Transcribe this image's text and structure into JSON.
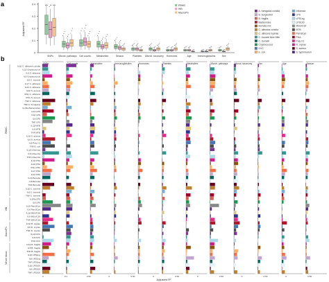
{
  "panels": {
    "a": "a",
    "b": "b"
  },
  "panel_a": {
    "ylabel": "Adjusted R²",
    "yticks": [
      "0.4",
      "0.3",
      "0.2",
      "0.1",
      "0"
    ],
    "categories": [
      "SNPs",
      "Microb. pathways",
      "Cell counts",
      "Metabolites",
      "Season",
      "Platelets",
      "Microb. taxonomy",
      "Hormones",
      "Age",
      "Immunoglobulins",
      "Sex"
    ],
    "legend": [
      {
        "label": "PBMC",
        "color": "#8fc99a"
      },
      {
        "label": "WB",
        "color": "#e9a3c9"
      },
      {
        "label": "MacroPS",
        "color": "#f6c28b"
      }
    ]
  },
  "color_legend": [
    {
      "label": "A. fumigatus conidia",
      "color": "#7b3294"
    },
    {
      "label": "B. burgdorferi",
      "color": "#c2a5cf"
    },
    {
      "label": "B. fragilis",
      "color": "#d6604d"
    },
    {
      "label": "Bacteroides",
      "color": "#b2182b"
    },
    {
      "label": "Borrelia mix",
      "color": "#8c510a"
    },
    {
      "label": "C. albicans conidia",
      "color": "#bf812d"
    },
    {
      "label": "C. albicans hyphae",
      "color": "#dfc27d"
    },
    {
      "label": "C. burnetii Nine Mile",
      "color": "#35978f"
    },
    {
      "label": "C. burnetii",
      "color": "#01665e"
    },
    {
      "label": "Cryptococcus",
      "color": "#1a9850"
    },
    {
      "label": "DVC",
      "color": "#4575b4"
    },
    {
      "label": "E. coli",
      "color": "#fdae61"
    },
    {
      "label": "Influenza",
      "color": "#74add1"
    },
    {
      "label": "LPS",
      "color": "#313695"
    },
    {
      "label": "LPS1ng",
      "color": "#abd9e9"
    },
    {
      "label": "LPS100",
      "color": "#e0f3f8"
    },
    {
      "label": "MSU/C16",
      "color": "#878787"
    },
    {
      "label": "MTB",
      "color": "#4d4d4d"
    },
    {
      "label": "Pam3Cys",
      "color": "#f46d43"
    },
    {
      "label": "PHA",
      "color": "#a50026"
    },
    {
      "label": "Poly I:C",
      "color": "#e7298a"
    },
    {
      "label": "R. oryzae",
      "color": "#d01c8b"
    },
    {
      "label": "S. aureus",
      "color": "#67001f"
    },
    {
      "label": "S. typhimurium",
      "color": "#542788"
    }
  ],
  "panel_b": {
    "columns": [
      "SNPs",
      "Cell counts",
      "Metabolites",
      "Immunoglobulins",
      "Hormones",
      "Platelets",
      "Metabolites",
      "Microb. pathways",
      "Microb. taxonomy",
      "Sex",
      "Age",
      "Season"
    ],
    "xticks": [
      "0",
      "0.1",
      "0.50",
      "0",
      "0.50",
      "0",
      "0.50",
      "0",
      "0.50",
      "0",
      "0.50",
      "0",
      "0.50"
    ],
    "xlabel": "Adjusted R²",
    "group_labels": [
      "PBMC",
      "WB",
      "MacroPS",
      "Whole blood"
    ],
    "row_labels": [
      "IL1β C. albicans conidia",
      "IL1β Cryptococcus",
      "IL6 C. albicans",
      "IL6 Cryptococcus",
      "IL6 C. burnetii",
      "IL17 C. albicans",
      "IL22 C. albicans",
      "IL22 S. aureus",
      "IFNγ C. albicans",
      "IFNγ S. aureus",
      "TNF C. albicans",
      "TNF A. fumigatus",
      "IL1Ra Bacteroides",
      "IL10 LPS",
      "IL1β LPS",
      "IL6 LPS",
      "TNF LPS",
      "IL1β MTB",
      "IL6 MTB",
      "TNF MTB",
      "IL1β S. aureus",
      "IL6 S. aureus",
      "IL8 Poly I:C",
      "TNF E. coli",
      "IL1β Influenza",
      "IL6 Influenza",
      "TNF Influenza",
      "IL1β PHA",
      "IL10 PHA",
      "IFNγ PHA",
      "IL17 PHA",
      "IL22 PHA",
      "IL1β Borrelia",
      "IL6 Borrelia",
      "TNF Borrelia",
      "IL1β C. burnetii",
      "IL6 C. burnetii",
      "TNF C. burnetii",
      "IL1Ra LPS",
      "IL8 LPS",
      "IL10 Pam3Cys",
      "IL6 Pam3Cys",
      "IL1β MSU/C16",
      "IL6 MSU/C16",
      "TNF MSU/C16",
      "IL1β R. oryzae",
      "IL6 R. oryzae",
      "TNF R. oryzae",
      "IL1β DVC",
      "IL6 DVC",
      "TNF DVC",
      "IL1β B. fragilis",
      "IL6 B. fragilis",
      "TNF B. fragilis",
      "IL1β LPS1ng",
      "IL6 LPS1ng",
      "TNF LPS1ng",
      "IL1β LPS100",
      "IL6 LPS100",
      "TNF LPS100"
    ]
  },
  "chart_data": {
    "type": "bar",
    "title": "",
    "xlabel": "",
    "ylabel": "Adjusted R²",
    "ylim": [
      0,
      0.4
    ],
    "categories": [
      "SNPs",
      "Microb. pathways",
      "Cell counts",
      "Metabolites",
      "Season",
      "Platelets",
      "Microb. taxonomy",
      "Hormones",
      "Age",
      "Immunoglobulins",
      "Sex"
    ],
    "series": [
      {
        "name": "PBMC",
        "values": [
          0.23,
          0.07,
          0.08,
          0.07,
          0.05,
          0.03,
          0.03,
          0.02,
          0.02,
          0.01,
          0.02
        ]
      },
      {
        "name": "WB",
        "values": [
          0.19,
          0.06,
          0.09,
          0.05,
          0.04,
          0.03,
          0.02,
          0.02,
          0.02,
          0.01,
          0.01
        ]
      },
      {
        "name": "MacroPS",
        "values": [
          0.21,
          0.08,
          0.07,
          0.06,
          0.03,
          0.02,
          0.03,
          0.03,
          0.01,
          0.02,
          0.03
        ]
      }
    ]
  }
}
